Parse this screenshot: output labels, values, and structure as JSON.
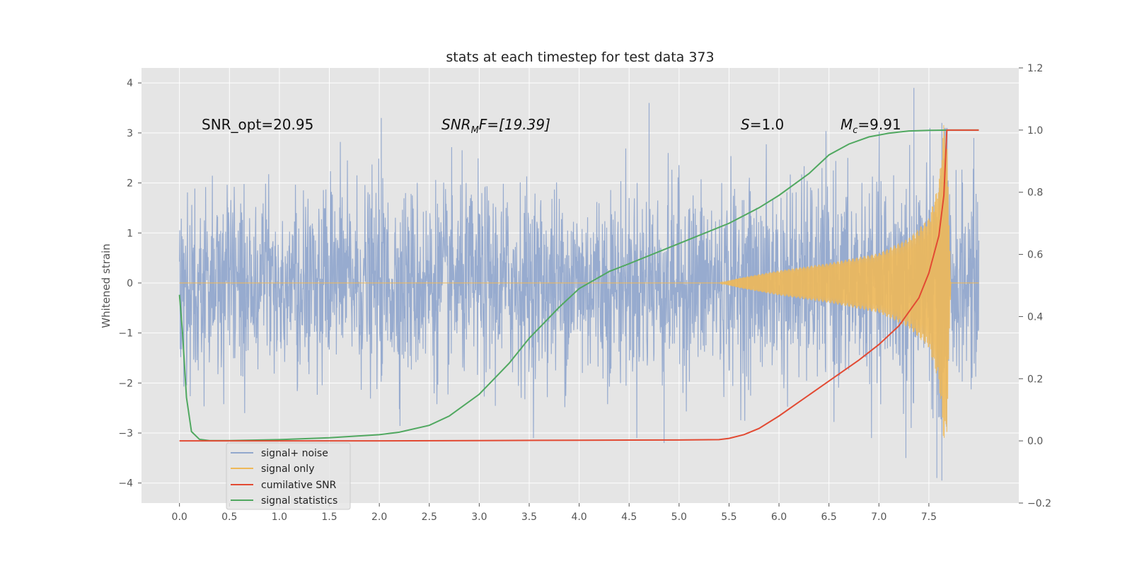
{
  "chart_data": {
    "type": "line",
    "title": "stats at each timestep for test data 373",
    "ylabel": "Whitened strain",
    "xlabel": "",
    "xlim": [
      -0.38,
      8.4
    ],
    "ylim": [
      -4.4,
      4.3
    ],
    "ylim_right": [
      -0.2,
      1.2
    ],
    "x_ticks": [
      "0.0",
      "0.5",
      "1.0",
      "1.5",
      "2.0",
      "2.5",
      "3.0",
      "3.5",
      "4.0",
      "4.5",
      "5.0",
      "5.5",
      "6.0",
      "6.5",
      "7.0",
      "7.5"
    ],
    "x_tick_values": [
      0,
      0.5,
      1,
      1.5,
      2,
      2.5,
      3,
      3.5,
      4,
      4.5,
      5,
      5.5,
      6,
      6.5,
      7,
      7.5
    ],
    "y_ticks": [
      "4",
      "3",
      "2",
      "1",
      "0",
      "−1",
      "−2",
      "−3",
      "−4"
    ],
    "y_tick_values": [
      4,
      3,
      2,
      1,
      0,
      -1,
      -2,
      -3,
      -4
    ],
    "y_right_ticks": [
      "1.2",
      "1.0",
      "0.8",
      "0.6",
      "0.4",
      "0.2",
      "0.0",
      "−0.2"
    ],
    "y_right_tick_values": [
      1.2,
      1.0,
      0.8,
      0.6,
      0.4,
      0.2,
      0.0,
      -0.2
    ],
    "grid": true,
    "legend": {
      "placement": "lower-left",
      "entries": [
        {
          "label": "signal+ noise",
          "color": "#92a8cd"
        },
        {
          "label": "signal only",
          "color": "#eeb858"
        },
        {
          "label": "cumilative SNR",
          "color": "#e24a33"
        },
        {
          "label": "signal statistics",
          "color": "#50a860"
        }
      ]
    },
    "annotations": {
      "snr_opt": "SNR_opt=20.95",
      "snr_mf_main": "SNR",
      "snr_mf_sub": "M",
      "snr_mf_rest": "F=[19.39]",
      "s_italic": "S",
      "s_rest": "=1.0",
      "mc_italic": "M",
      "mc_sub": "c",
      "mc_rest": "=9.91"
    },
    "series": [
      {
        "name": "signal+ noise",
        "axis": "left",
        "color": "#92a8cd",
        "x_range": [
          0,
          8.0
        ],
        "noise_envelope": {
          "x": [
            0,
            8.0
          ],
          "upper": [
            1.7,
            1.7
          ],
          "lower": [
            -1.6,
            -1.6
          ]
        },
        "notable_peaks": [
          {
            "x": 2.02,
            "y": 3.3
          },
          {
            "x": 4.7,
            "y": 3.6
          },
          {
            "x": 7.35,
            "y": 3.9
          },
          {
            "x": 7.63,
            "y": 3.2
          },
          {
            "x": 7.95,
            "y": 2.9
          },
          {
            "x": 4.85,
            "y": -3.2
          },
          {
            "x": 7.27,
            "y": -3.5
          },
          {
            "x": 7.58,
            "y": -3.9
          },
          {
            "x": 7.63,
            "y": -3.95
          }
        ]
      },
      {
        "name": "signal only",
        "axis": "left",
        "color": "#eeb858",
        "chirp": {
          "x": [
            0,
            5.4,
            5.6,
            6.0,
            6.5,
            7.0,
            7.3,
            7.5,
            7.6,
            7.65,
            7.68,
            7.72,
            8.0
          ],
          "amplitude": [
            0,
            0,
            0.1,
            0.25,
            0.4,
            0.6,
            0.9,
            1.3,
            2.0,
            3.2,
            3.0,
            0,
            0
          ]
        }
      },
      {
        "name": "cumilative SNR",
        "axis": "right",
        "color": "#e24a33",
        "x": [
          0,
          1.0,
          2.0,
          3.0,
          4.0,
          5.0,
          5.4,
          5.5,
          5.65,
          5.8,
          6.0,
          6.2,
          6.4,
          6.6,
          6.8,
          7.0,
          7.2,
          7.4,
          7.5,
          7.6,
          7.65,
          7.68,
          8.0
        ],
        "y": [
          0.0,
          0.0,
          0.0,
          0.001,
          0.002,
          0.003,
          0.004,
          0.008,
          0.02,
          0.04,
          0.08,
          0.125,
          0.17,
          0.215,
          0.26,
          0.31,
          0.37,
          0.46,
          0.54,
          0.66,
          0.79,
          1.0,
          1.0
        ]
      },
      {
        "name": "signal statistics",
        "axis": "right",
        "color": "#50a860",
        "x": [
          0,
          0.03,
          0.07,
          0.12,
          0.2,
          0.3,
          0.5,
          1.0,
          1.5,
          2.0,
          2.2,
          2.5,
          2.7,
          3.0,
          3.3,
          3.5,
          3.8,
          4.0,
          4.3,
          4.5,
          5.0,
          5.5,
          5.8,
          6.0,
          6.3,
          6.5,
          6.7,
          6.9,
          7.1,
          7.3,
          7.5,
          7.7,
          8.0
        ],
        "y": [
          0.47,
          0.35,
          0.14,
          0.03,
          0.005,
          0.001,
          0.001,
          0.004,
          0.01,
          0.02,
          0.028,
          0.05,
          0.08,
          0.15,
          0.25,
          0.33,
          0.43,
          0.49,
          0.545,
          0.57,
          0.635,
          0.7,
          0.75,
          0.79,
          0.86,
          0.92,
          0.955,
          0.978,
          0.99,
          0.997,
          0.999,
          1.0,
          1.0
        ]
      }
    ]
  }
}
